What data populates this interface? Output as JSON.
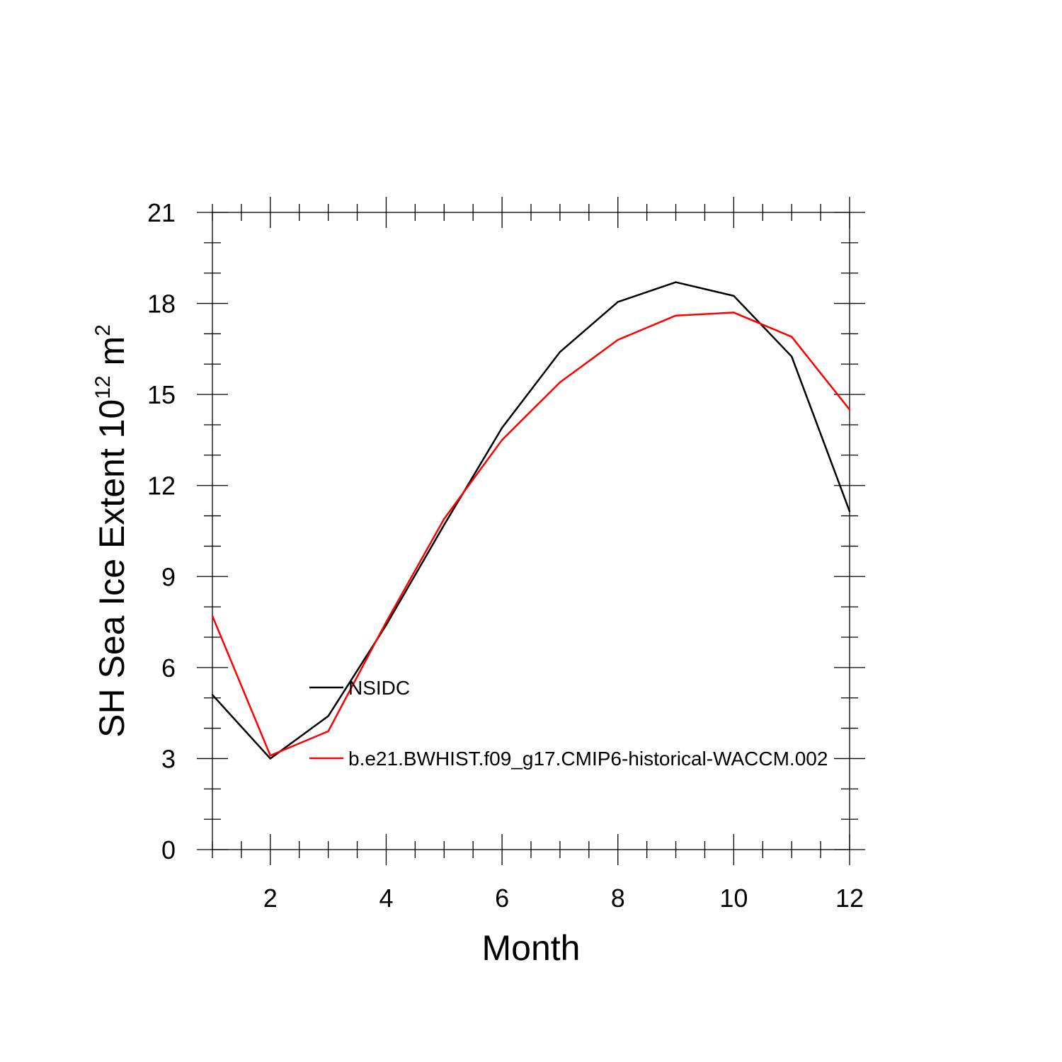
{
  "chart_data": {
    "type": "line",
    "title": "",
    "xlabel": "Month",
    "ylabel": "SH Sea Ice Extent 10",
    "ylabel_superscript": "12",
    "ylabel_unit": " m",
    "ylabel_unit_superscript": "2",
    "xlim": [
      1,
      12
    ],
    "ylim": [
      0,
      21
    ],
    "x_major_ticks": [
      2,
      4,
      6,
      8,
      10,
      12
    ],
    "x_tick_labels": [
      "2",
      "4",
      "6",
      "8",
      "10",
      "12"
    ],
    "y_major_ticks": [
      0,
      3,
      6,
      9,
      12,
      15,
      18,
      21
    ],
    "y_tick_labels": [
      "0",
      "3",
      "6",
      "9",
      "12",
      "15",
      "18",
      "21"
    ],
    "grid": false,
    "legend_position": "inside-lower-left",
    "x": [
      1,
      2,
      3,
      4,
      5,
      6,
      7,
      8,
      9,
      10,
      11,
      12
    ],
    "series": [
      {
        "name": "NSIDC",
        "color": "#000000",
        "values": [
          5.1,
          3.0,
          4.4,
          7.4,
          10.7,
          13.9,
          16.4,
          18.05,
          18.7,
          18.25,
          16.25,
          11.15
        ]
      },
      {
        "name": "b.e21.BWHIST.f09_g17.CMIP6-historical-WACCM.002",
        "color": "#ff0000",
        "values": [
          7.7,
          3.1,
          3.9,
          7.5,
          10.9,
          13.5,
          15.4,
          16.8,
          17.6,
          17.7,
          16.9,
          14.5
        ]
      }
    ]
  }
}
